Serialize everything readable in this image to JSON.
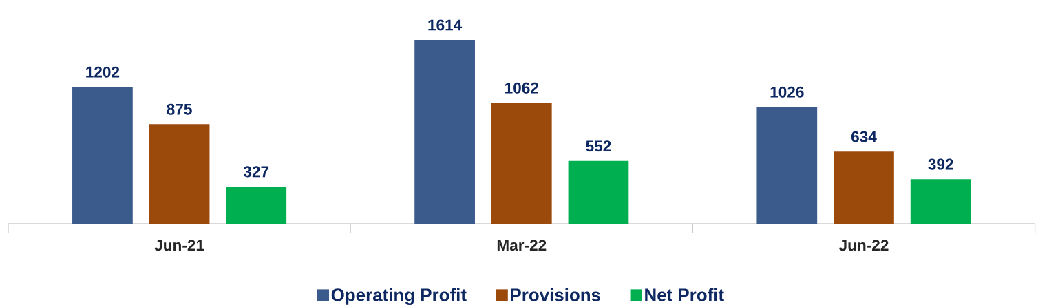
{
  "chart_data": {
    "type": "bar",
    "categories": [
      "Jun-21",
      "Mar-22",
      "Jun-22"
    ],
    "series": [
      {
        "name": "Operating Profit",
        "color": "#3a5b8c",
        "values": [
          1202,
          1614,
          1026
        ]
      },
      {
        "name": "Provisions",
        "color": "#9c4a0c",
        "values": [
          875,
          1062,
          634
        ]
      },
      {
        "name": "Net Profit",
        "color": "#00b050",
        "values": [
          327,
          552,
          392
        ]
      }
    ],
    "data_labels": true,
    "legend": "bottom",
    "grid": false
  }
}
